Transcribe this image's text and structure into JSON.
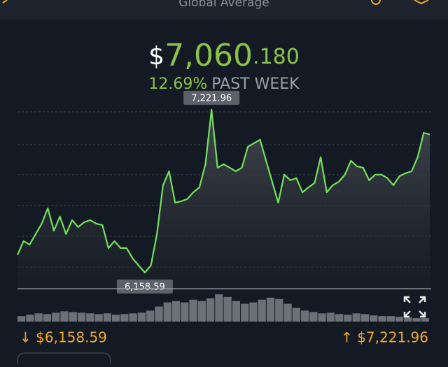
{
  "header": {
    "title": "Global Average"
  },
  "price": {
    "currency": "$",
    "whole": "7,060",
    "decimals": ".180"
  },
  "change": {
    "percent": "12.69%",
    "period": "PAST WEEK"
  },
  "chart_data": {
    "type": "line",
    "series": [
      {
        "name": "Price",
        "color": "#74e05a",
        "values": [
          6273,
          6364,
          6341,
          6410,
          6478,
          6578,
          6432,
          6524,
          6410,
          6501,
          6455,
          6487,
          6501,
          6478,
          6469,
          6318,
          6364,
          6318,
          6318,
          6250,
          6204,
          6158.59,
          6204,
          6410,
          6729,
          6820,
          6615,
          6624,
          6638,
          6683,
          6715,
          6866,
          7221.96,
          6843,
          6866,
          6843,
          6820,
          6843,
          6980,
          7003,
          7026,
          6889,
          6752,
          6615,
          6798,
          6761,
          6775,
          6683,
          6715,
          6743,
          6912,
          6683,
          6729,
          6752,
          6798,
          6889,
          6852,
          6843,
          6761,
          6798,
          6798,
          6775,
          6729,
          6788,
          6807,
          6820,
          6912,
          7071,
          7060
        ]
      }
    ],
    "ylim": [
      6053,
      7322
    ],
    "grid": true,
    "max_label": "7,221.96",
    "min_label": "6,158.59",
    "volume": {
      "color": "#8a8f96",
      "ylim": [
        0,
        45
      ],
      "values": [
        8,
        10,
        12,
        11,
        13,
        15,
        14,
        13,
        12,
        11,
        12,
        10,
        11,
        12,
        13,
        16,
        22,
        28,
        30,
        28,
        32,
        30,
        34,
        40,
        36,
        30,
        26,
        28,
        32,
        35,
        33,
        26,
        20,
        16,
        14,
        12,
        13,
        11,
        10,
        12,
        11,
        9,
        8,
        8,
        7,
        6,
        5,
        5
      ]
    }
  },
  "footer": {
    "low": "↓ $6,158.59",
    "high": "↑ $7,221.96"
  }
}
